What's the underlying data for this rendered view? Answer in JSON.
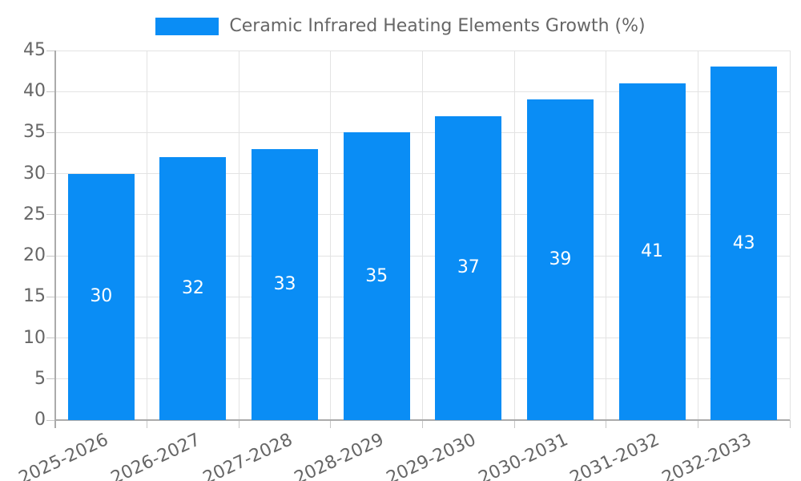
{
  "chart_data": {
    "type": "bar",
    "title": "Ceramic Infrared Heating Elements Growth (%)",
    "categories": [
      "2025-2026",
      "2026-2027",
      "2027-2028",
      "2028-2029",
      "2029-2030",
      "2030-2031",
      "2031-2032",
      "2032-2033"
    ],
    "values": [
      30,
      32,
      33,
      35,
      37,
      39,
      41,
      43
    ],
    "value_labels": [
      "30",
      "32",
      "33",
      "35",
      "37",
      "39",
      "41",
      "43"
    ],
    "xlabel": "",
    "ylabel": "",
    "ylim": [
      0,
      45
    ],
    "yticks": [
      0,
      5,
      10,
      15,
      20,
      25,
      30,
      35,
      40,
      45
    ],
    "grid": true,
    "legend_position": "top-center",
    "legend_label": "Ceramic Infrared Heating Elements Growth (%)",
    "colors": {
      "bar": "#0a8df5",
      "value_label": "#ffffff",
      "tick_label": "#666666",
      "legend_text": "#666666",
      "gridline": "#e3e3e3",
      "axis_line": "#ababab",
      "tick_mark": "#c6c6c6",
      "background": "#ffffff"
    }
  }
}
